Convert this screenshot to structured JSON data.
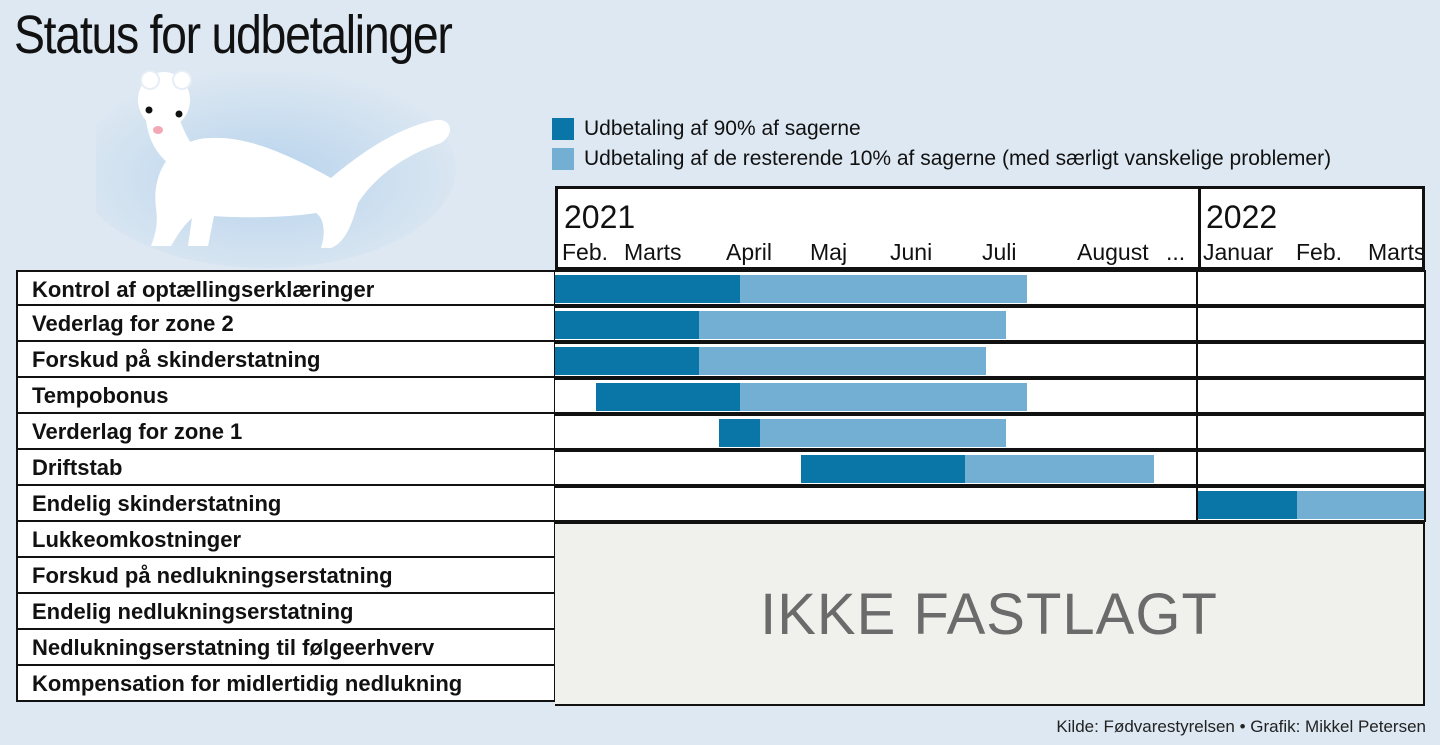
{
  "title": "Status for udbetalinger",
  "legend": [
    {
      "label": "Udbetaling af 90% af sagerne",
      "color": "#0a76a7"
    },
    {
      "label": "Udbetaling af de resterende 10% af sagerne (med særligt vanskelige problemer)",
      "color": "#72afd2"
    }
  ],
  "header": {
    "year_2021": "2021",
    "year_2022": "2022",
    "months_2021": [
      "Feb.",
      "Marts",
      "April",
      "Maj",
      "Juni",
      "Juli",
      "August",
      "..."
    ],
    "months_2022": [
      "Januar",
      "Feb.",
      "Marts"
    ]
  },
  "not_set_label": "IKKE FASTLAGT",
  "source": "Kilde: Fødvarestyrelsen • Grafik: Mikkel Petersen",
  "chart_data": {
    "type": "gantt",
    "phases": [
      "Udbetaling af 90% af sagerne",
      "Udbetaling af de resterende 10% af sagerne (med særligt vanskelige problemer)"
    ],
    "timeline_2021": [
      "Feb.",
      "Marts",
      "April",
      "Maj",
      "Juni",
      "Juli",
      "August",
      "..."
    ],
    "timeline_2022": [
      "Januar",
      "Feb.",
      "Marts"
    ],
    "rows": [
      {
        "task": "Kontrol af optællingserklæringer",
        "period": "2021",
        "start": 0.0,
        "split": 2.25,
        "end": 5.75
      },
      {
        "task": "Vederlag for zone 2",
        "period": "2021",
        "start": 0.0,
        "split": 1.75,
        "end": 5.5
      },
      {
        "task": "Forskud på skinderstatning",
        "period": "2021",
        "start": 0.0,
        "split": 1.75,
        "end": 5.25
      },
      {
        "task": "Tempobonus",
        "period": "2021",
        "start": 0.5,
        "split": 2.25,
        "end": 5.75
      },
      {
        "task": "Verderlag for zone 1",
        "period": "2021",
        "start": 2.0,
        "split": 2.5,
        "end": 5.5
      },
      {
        "task": "Driftstab",
        "period": "2021",
        "start": 3.0,
        "split": 5.0,
        "end": 7.3
      },
      {
        "task": "Endelig skinderstatning",
        "period": "2022",
        "start": 0.0,
        "split": 1.3,
        "end": 3.0
      },
      {
        "task": "Lukkeomkostninger",
        "period": "IKKE FASTLAGT"
      },
      {
        "task": "Forskud på nedlukningserstatning",
        "period": "IKKE FASTLAGT"
      },
      {
        "task": "Endelig nedlukningserstatning",
        "period": "IKKE FASTLAGT"
      },
      {
        "task": "Nedlukningserstatning til følgeerhverv",
        "period": "IKKE FASTLAGT"
      },
      {
        "task": "Kompensation for midlertidig nedlukning",
        "period": "IKKE FASTLAGT"
      }
    ]
  }
}
